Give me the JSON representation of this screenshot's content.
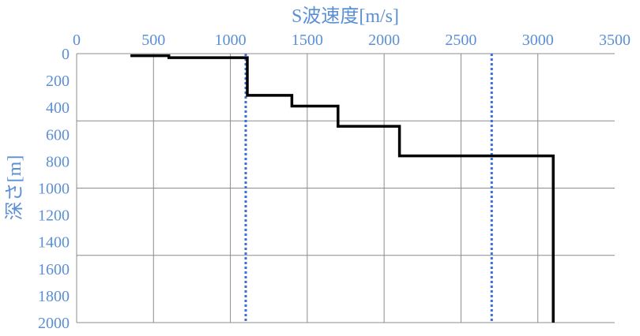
{
  "chart_data": {
    "type": "line",
    "title": "",
    "xlabel": "S波速度[m/s]",
    "ylabel": "深さ[m]",
    "x_axis_position": "top",
    "y_axis_inverted": true,
    "xlim": [
      0,
      3500
    ],
    "ylim": [
      0,
      2000
    ],
    "x_ticks": [
      "0",
      "500",
      "1000",
      "1500",
      "2000",
      "2500",
      "3000",
      "3500"
    ],
    "y_ticks": [
      "0",
      "200",
      "400",
      "600",
      "800",
      "1000",
      "1200",
      "1400",
      "1600",
      "1800",
      "2000"
    ],
    "grid": "vertical lines every 500 m/s, horizontal lines every 500 m",
    "series": [
      {
        "style": "solid",
        "color": "#000000",
        "points": [
          {
            "x": 350,
            "y": 15
          },
          {
            "x": 600,
            "y": 15
          },
          {
            "x": 600,
            "y": 30
          },
          {
            "x": 1110,
            "y": 30
          },
          {
            "x": 1110,
            "y": 310
          },
          {
            "x": 1400,
            "y": 310
          },
          {
            "x": 1400,
            "y": 390
          },
          {
            "x": 1700,
            "y": 390
          },
          {
            "x": 1700,
            "y": 540
          },
          {
            "x": 2100,
            "y": 540
          },
          {
            "x": 2100,
            "y": 760
          },
          {
            "x": 3100,
            "y": 760
          },
          {
            "x": 3100,
            "y": 2000
          }
        ]
      },
      {
        "style": "dotted",
        "color": "#3a6fd8",
        "points": [
          {
            "x": 1100,
            "y": 0
          },
          {
            "x": 1100,
            "y": 2000
          }
        ]
      },
      {
        "style": "dotted",
        "color": "#3a6fd8",
        "points": [
          {
            "x": 2700,
            "y": 0
          },
          {
            "x": 2700,
            "y": 2000
          }
        ]
      }
    ]
  }
}
